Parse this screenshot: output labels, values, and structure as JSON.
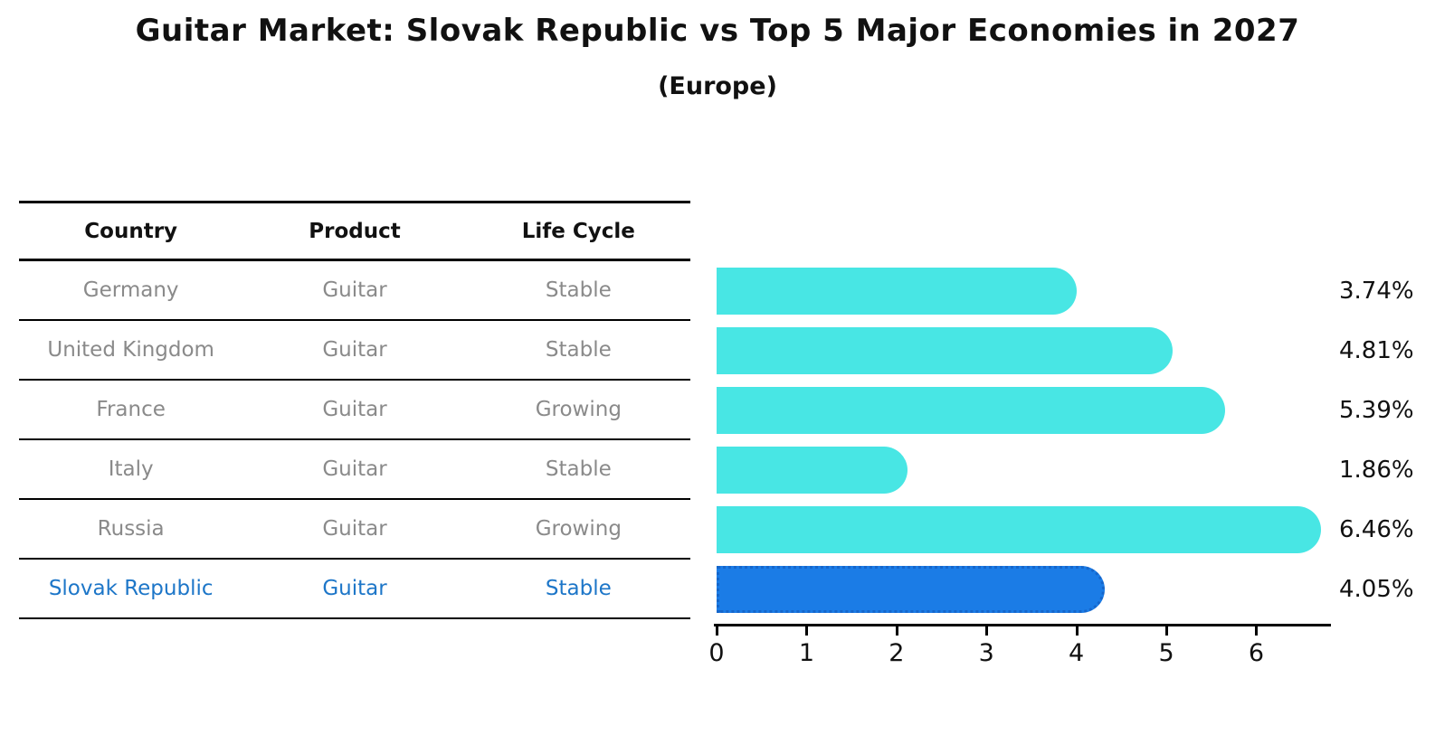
{
  "title": "Guitar Market: Slovak Republic vs Top 5 Major Economies in 2027",
  "subtitle": "(Europe)",
  "table": {
    "headers": [
      "Country",
      "Product",
      "Life Cycle"
    ],
    "rows": [
      {
        "country": "Germany",
        "product": "Guitar",
        "life_cycle": "Stable"
      },
      {
        "country": "United Kingdom",
        "product": "Guitar",
        "life_cycle": "Stable"
      },
      {
        "country": "France",
        "product": "Guitar",
        "life_cycle": "Growing"
      },
      {
        "country": "Italy",
        "product": "Guitar",
        "life_cycle": "Stable"
      },
      {
        "country": "Russia",
        "product": "Guitar",
        "life_cycle": "Growing"
      },
      {
        "country": "Slovak Republic",
        "product": "Guitar",
        "life_cycle": "Stable"
      }
    ],
    "highlight_row_index": 5
  },
  "chart_data": {
    "type": "bar",
    "orientation": "horizontal",
    "categories": [
      "Germany",
      "United Kingdom",
      "France",
      "Italy",
      "Russia",
      "Slovak Republic"
    ],
    "values": [
      3.74,
      4.81,
      5.39,
      1.86,
      6.46,
      4.05
    ],
    "value_labels": [
      "3.74%",
      "4.81%",
      "5.39%",
      "1.86%",
      "6.46%",
      "4.05%"
    ],
    "x_ticks": [
      "0",
      "1",
      "2",
      "3",
      "4",
      "5",
      "6"
    ],
    "xlim": [
      0,
      6.8
    ],
    "grid": false,
    "legend": false,
    "bar_color": "#48E6E4",
    "highlight_index": 5,
    "highlight_color": "#1B7CE6",
    "highlight_border_color": "#1566CB"
  },
  "colors": {
    "title_text": "#111111",
    "table_header_text": "#111111",
    "table_body_text": "#8a8a8a",
    "highlight_text": "#1D76C8",
    "axis": "#000000"
  }
}
